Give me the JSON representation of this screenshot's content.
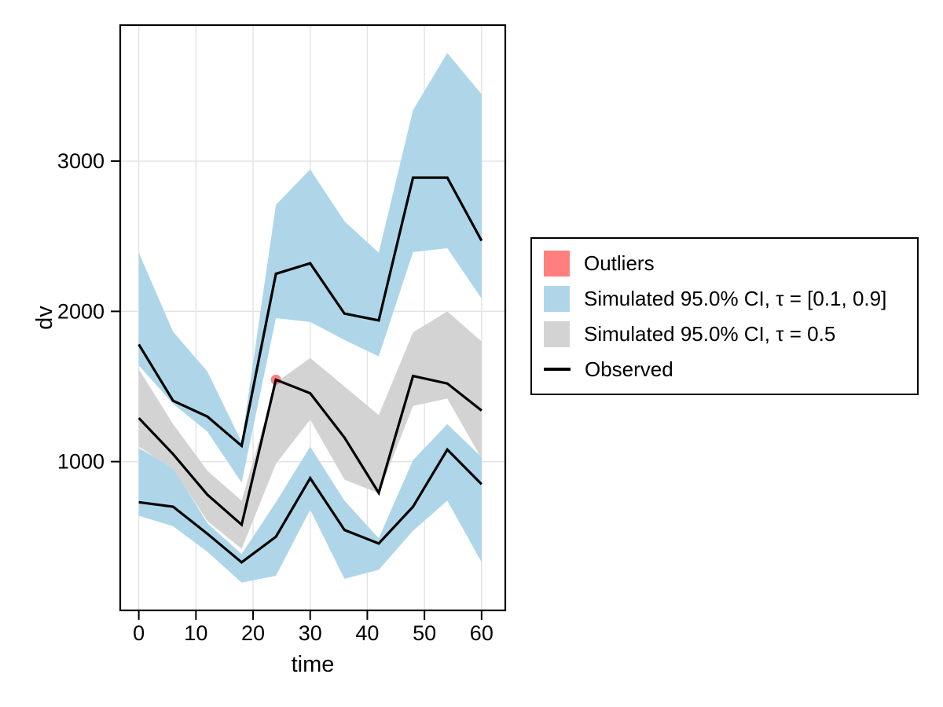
{
  "figure": {
    "xlabel": "time",
    "ylabel": "dv"
  },
  "colors": {
    "outlier": "#FF7F7F",
    "ci_extreme": "#AED6E8",
    "ci_median": "#D3D3D3",
    "observed": "#000000",
    "gridline": "#E3E3E3",
    "frame": "#000000",
    "tick_text": "#000000",
    "background": "#FFFFFF"
  },
  "legend": {
    "items": [
      {
        "label": "Outliers",
        "swatch": "square",
        "color_key": "outlier"
      },
      {
        "label": "Simulated 95.0% CI, τ = [0.1, 0.9]",
        "swatch": "square",
        "color_key": "ci_extreme"
      },
      {
        "label": "Simulated 95.0% CI, τ = 0.5",
        "swatch": "square",
        "color_key": "ci_median"
      },
      {
        "label": "Observed",
        "swatch": "line",
        "color_key": "observed"
      }
    ]
  },
  "chart_data": {
    "type": "area",
    "description": "Visual predictive check: observed quantile lines with simulated confidence-interval bands",
    "xlabel": "time",
    "ylabel": "dv",
    "x": [
      0,
      6,
      12,
      18,
      24,
      30,
      36,
      42,
      48,
      54,
      60
    ],
    "series": [
      {
        "name": "Simulated 95.0% CI, τ = 0.9 (upper blue band)",
        "kind": "band",
        "color_key": "ci_extreme",
        "upper": [
          2390,
          1865,
          1600,
          1130,
          2710,
          2945,
          2600,
          2390,
          3340,
          3720,
          3445
        ],
        "lower": [
          1640,
          1385,
          1200,
          860,
          1955,
          1930,
          1810,
          1700,
          2395,
          2420,
          2085
        ]
      },
      {
        "name": "Simulated 95.0% CI, τ = 0.1 (lower blue band)",
        "kind": "band",
        "color_key": "ci_extreme",
        "upper": [
          1090,
          960,
          590,
          385,
          730,
          1100,
          740,
          490,
          1010,
          1250,
          1030
        ],
        "lower": [
          640,
          570,
          400,
          195,
          240,
          680,
          220,
          280,
          540,
          740,
          330
        ]
      },
      {
        "name": "Simulated 95.0% CI, τ = 0.5 (gray band)",
        "kind": "band",
        "color_key": "ci_median",
        "upper": [
          1615,
          1250,
          940,
          740,
          1525,
          1690,
          1500,
          1310,
          1860,
          2000,
          1800
        ],
        "lower": [
          1100,
          950,
          605,
          420,
          985,
          1280,
          880,
          790,
          1370,
          1420,
          1020
        ]
      },
      {
        "name": "Observed 90th percentile",
        "kind": "line",
        "color_key": "observed",
        "values": [
          1780,
          1405,
          1300,
          1105,
          2250,
          2320,
          1985,
          1940,
          2890,
          2890,
          2470
        ]
      },
      {
        "name": "Observed median",
        "kind": "line",
        "color_key": "observed",
        "values": [
          1290,
          1050,
          780,
          580,
          1545,
          1455,
          1160,
          792,
          1570,
          1520,
          1340
        ]
      },
      {
        "name": "Observed 10th percentile",
        "kind": "line",
        "color_key": "observed",
        "values": [
          730,
          700,
          520,
          330,
          500,
          890,
          545,
          455,
          700,
          1080,
          850
        ]
      }
    ],
    "outlier_points": [
      {
        "x": 24,
        "y": 1545
      }
    ],
    "xticks": [
      0,
      10,
      20,
      30,
      40,
      50,
      60
    ],
    "yticks": [
      1000,
      2000,
      3000
    ],
    "xlim": [
      -3.25,
      64.15
    ],
    "ylim": [
      10,
      3905
    ],
    "grid": true,
    "legend_position": "right-outside"
  }
}
